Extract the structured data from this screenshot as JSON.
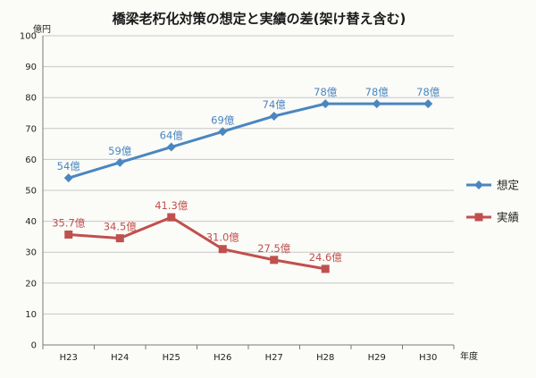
{
  "chart_data": {
    "type": "line",
    "title": "橋梁老朽化対策の想定と実績の差(架け替え含む)",
    "y_unit": "億円",
    "x_unit": "年度",
    "categories": [
      "H23",
      "H24",
      "H25",
      "H26",
      "H27",
      "H28",
      "H29",
      "H30"
    ],
    "ylim": [
      0,
      100
    ],
    "yticks": [
      0,
      10,
      20,
      30,
      40,
      50,
      60,
      70,
      80,
      90,
      100
    ],
    "grid": true,
    "legend_position": "right",
    "series": [
      {
        "name": "想定",
        "color": "#4a86c0",
        "marker": "diamond",
        "values": [
          54,
          59,
          64,
          69,
          74,
          78,
          78,
          78
        ],
        "labels": [
          "54億",
          "59億",
          "64億",
          "69億",
          "74億",
          "78億",
          "78億",
          "78億"
        ]
      },
      {
        "name": "実績",
        "color": "#c0504d",
        "marker": "square",
        "values": [
          35.7,
          34.5,
          41.3,
          31.0,
          27.5,
          24.6,
          null,
          null
        ],
        "labels": [
          "35.7億",
          "34.5億",
          "41.3億",
          "31.0億",
          "27.5億",
          "24.6億",
          null,
          null
        ]
      }
    ]
  }
}
